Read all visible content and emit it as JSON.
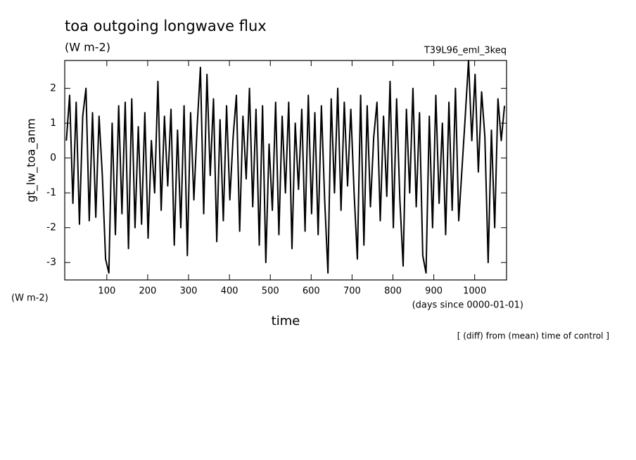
{
  "chart_data": {
    "type": "line",
    "title": "toa outgoing longwave flux",
    "subtitle": "(W m-2)",
    "run_label": "T39L96_eml_3keq",
    "y_label": "gt_lw_toa_anm",
    "y_unit": "(W m-2)",
    "x_unit": "(days since 0000-01-01)",
    "x_label": "time",
    "note": "[ (diff) from (mean) time of control ]",
    "color": "#000000",
    "xlim": [
      -3,
      1078
    ],
    "ylim": [
      -3.5,
      2.8
    ],
    "xticks": [
      100,
      200,
      300,
      400,
      500,
      600,
      700,
      800,
      900,
      1000
    ],
    "yticks": [
      -3,
      -2,
      -1,
      0,
      1,
      2
    ],
    "x": [
      1,
      9,
      17,
      25,
      33,
      41,
      49,
      57,
      65,
      73,
      81,
      89,
      97,
      105,
      113,
      121,
      129,
      137,
      145,
      153,
      161,
      169,
      177,
      185,
      193,
      201,
      209,
      217,
      225,
      233,
      241,
      249,
      257,
      265,
      273,
      281,
      289,
      297,
      305,
      313,
      321,
      329,
      337,
      345,
      353,
      361,
      369,
      377,
      385,
      393,
      401,
      409,
      417,
      425,
      433,
      441,
      449,
      457,
      465,
      473,
      481,
      489,
      497,
      505,
      513,
      521,
      529,
      537,
      545,
      553,
      561,
      569,
      577,
      585,
      593,
      601,
      609,
      617,
      625,
      633,
      641,
      649,
      657,
      665,
      673,
      681,
      689,
      697,
      705,
      713,
      721,
      729,
      737,
      745,
      753,
      761,
      769,
      777,
      785,
      793,
      801,
      809,
      817,
      825,
      833,
      841,
      849,
      857,
      865,
      873,
      881,
      889,
      897,
      905,
      913,
      921,
      929,
      937,
      945,
      953,
      961,
      969,
      977,
      985,
      993,
      1001,
      1009,
      1017,
      1025,
      1033,
      1041,
      1049,
      1057,
      1065,
      1073
    ],
    "values": [
      0.5,
      1.8,
      -1.3,
      1.6,
      -1.9,
      1.2,
      2.0,
      -1.8,
      1.3,
      -1.7,
      1.2,
      -0.5,
      -2.9,
      -3.3,
      1.0,
      -2.2,
      1.5,
      -1.6,
      1.6,
      -2.6,
      1.7,
      -2.0,
      0.9,
      -1.9,
      1.3,
      -2.3,
      0.5,
      -1.0,
      2.2,
      -1.5,
      1.2,
      -0.8,
      1.4,
      -2.5,
      0.8,
      -2.0,
      1.5,
      -2.8,
      1.3,
      -1.2,
      0.9,
      2.6,
      -1.6,
      2.4,
      -0.5,
      1.7,
      -2.4,
      1.1,
      -1.8,
      1.5,
      -1.2,
      0.6,
      1.8,
      -2.1,
      1.2,
      -0.6,
      2.0,
      -1.4,
      1.4,
      -2.5,
      1.5,
      -3.0,
      0.4,
      -1.5,
      1.6,
      -2.2,
      1.2,
      -1.0,
      1.6,
      -2.6,
      1.0,
      -0.9,
      1.4,
      -2.1,
      1.8,
      -1.6,
      1.3,
      -2.2,
      1.5,
      -1.2,
      -3.3,
      1.7,
      -1.0,
      2.0,
      -1.5,
      1.6,
      -0.8,
      1.4,
      -1.0,
      -2.9,
      1.8,
      -2.5,
      1.5,
      -1.4,
      0.6,
      1.6,
      -1.8,
      1.2,
      -1.1,
      2.2,
      -2.0,
      1.7,
      -1.2,
      -3.1,
      1.4,
      -1.0,
      2.0,
      -1.4,
      1.3,
      -2.8,
      -3.3,
      1.2,
      -2.0,
      1.8,
      -1.3,
      1.0,
      -2.2,
      1.6,
      -1.5,
      2.0,
      -1.8,
      -0.3,
      1.2,
      2.8,
      0.5,
      2.4,
      -0.4,
      1.9,
      0.6,
      -3.0,
      0.8,
      -2.0,
      1.7,
      0.5,
      1.5
    ]
  }
}
